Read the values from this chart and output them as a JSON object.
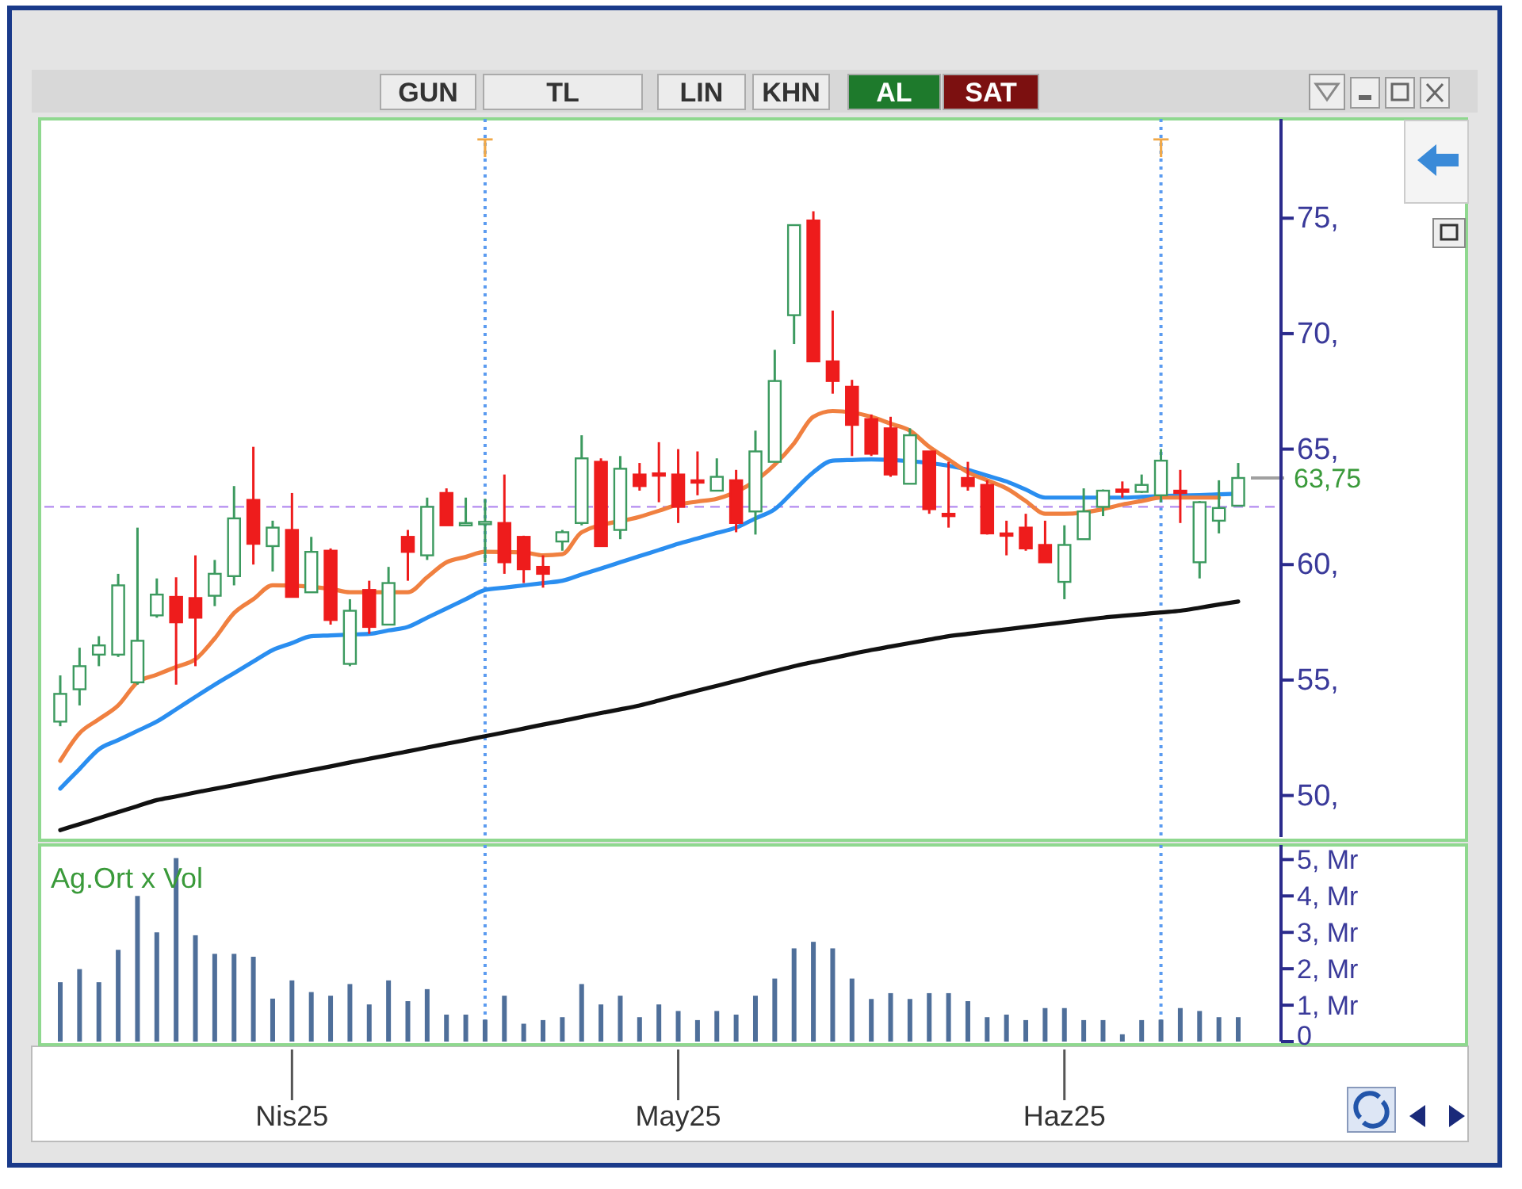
{
  "chart_data": [
    {
      "type": "candlestick",
      "annotations": [
        "GUN",
        "TL",
        "LIN",
        "KHN",
        "AL",
        "SAT",
        "T",
        "T"
      ],
      "categories": [
        null,
        null,
        null,
        null,
        null,
        null,
        null,
        null,
        null,
        null,
        null,
        null,
        null,
        null,
        null,
        null,
        null,
        null,
        null,
        null,
        null,
        null,
        null,
        null,
        null,
        null,
        null,
        null,
        null,
        null,
        null,
        null,
        null,
        null,
        null,
        null,
        null,
        null,
        null,
        null,
        null,
        null,
        null,
        null,
        null,
        null,
        null,
        null,
        null,
        null,
        null,
        null,
        null,
        null,
        null,
        null,
        null,
        null,
        null,
        null,
        null,
        null
      ],
      "ohlc": [
        [
          53.2,
          55.2,
          53.0,
          54.4
        ],
        [
          54.6,
          56.4,
          53.9,
          55.6
        ],
        [
          56.1,
          56.9,
          55.6,
          56.5
        ],
        [
          56.1,
          59.6,
          56.0,
          59.1
        ],
        [
          54.9,
          61.6,
          54.8,
          56.7
        ],
        [
          57.8,
          59.4,
          57.7,
          58.7
        ],
        [
          58.6,
          59.45,
          54.8,
          57.5
        ],
        [
          58.55,
          60.4,
          55.6,
          57.7
        ],
        [
          58.65,
          60.2,
          58.2,
          59.6
        ],
        [
          59.5,
          63.4,
          59.1,
          62.0
        ],
        [
          62.8,
          65.1,
          60.0,
          60.9
        ],
        [
          60.8,
          61.9,
          59.7,
          61.6
        ],
        [
          61.5,
          63.1,
          58.6,
          58.6
        ],
        [
          58.8,
          61.2,
          58.8,
          60.55
        ],
        [
          60.6,
          60.7,
          57.4,
          57.6
        ],
        [
          55.7,
          58.5,
          55.6,
          58.0
        ],
        [
          58.9,
          59.3,
          57.0,
          57.3
        ],
        [
          57.4,
          59.9,
          57.4,
          59.2
        ],
        [
          61.2,
          61.5,
          59.3,
          60.55
        ],
        [
          60.4,
          62.9,
          60.2,
          62.5
        ],
        [
          63.1,
          63.3,
          61.7,
          61.7
        ],
        [
          61.7,
          62.9,
          61.7,
          61.8
        ],
        [
          61.75,
          62.85,
          60.1,
          61.85
        ],
        [
          61.8,
          63.9,
          59.6,
          60.1
        ],
        [
          61.2,
          61.25,
          59.2,
          59.8
        ],
        [
          59.9,
          60.4,
          59.0,
          59.6
        ],
        [
          61.0,
          61.5,
          60.6,
          61.4
        ],
        [
          61.8,
          65.6,
          61.7,
          64.6
        ],
        [
          64.45,
          64.6,
          60.8,
          60.8
        ],
        [
          61.5,
          64.7,
          61.1,
          64.15
        ],
        [
          63.9,
          64.4,
          63.2,
          63.4
        ],
        [
          63.95,
          65.3,
          62.7,
          63.85
        ],
        [
          63.9,
          65.0,
          61.8,
          62.5
        ],
        [
          63.65,
          64.9,
          63.0,
          63.55
        ],
        [
          63.2,
          64.6,
          63.2,
          63.8
        ],
        [
          63.65,
          64.1,
          61.4,
          61.8
        ],
        [
          62.3,
          65.8,
          61.3,
          64.9
        ],
        [
          64.45,
          69.3,
          64.45,
          67.95
        ],
        [
          70.8,
          74.7,
          69.55,
          74.7
        ],
        [
          74.9,
          75.3,
          68.8,
          68.8
        ],
        [
          68.8,
          71.0,
          67.4,
          67.95
        ],
        [
          67.7,
          68.0,
          64.7,
          66.05
        ],
        [
          66.3,
          66.5,
          64.7,
          64.8
        ],
        [
          65.9,
          66.4,
          63.8,
          63.9
        ],
        [
          63.5,
          65.9,
          63.5,
          65.6
        ],
        [
          64.9,
          64.9,
          62.2,
          62.4
        ],
        [
          62.2,
          64.45,
          61.6,
          62.15
        ],
        [
          63.75,
          64.45,
          63.2,
          63.4
        ],
        [
          63.45,
          63.65,
          61.3,
          61.35
        ],
        [
          61.35,
          61.9,
          60.4,
          61.3
        ],
        [
          61.6,
          62.2,
          60.6,
          60.7
        ],
        [
          60.85,
          61.9,
          60.1,
          60.1
        ],
        [
          59.25,
          61.7,
          58.5,
          60.85
        ],
        [
          61.1,
          63.3,
          61.1,
          62.3
        ],
        [
          62.5,
          63.25,
          62.1,
          63.2
        ],
        [
          63.25,
          63.6,
          62.9,
          63.15
        ],
        [
          63.15,
          63.9,
          63.1,
          63.45
        ],
        [
          63.0,
          65.0,
          62.7,
          64.5
        ],
        [
          63.2,
          64.1,
          61.8,
          63.1
        ],
        [
          60.1,
          62.75,
          59.4,
          62.7
        ],
        [
          61.9,
          63.65,
          61.35,
          62.45
        ],
        [
          62.55,
          64.4,
          62.55,
          63.75
        ]
      ],
      "series": [
        {
          "type": "line",
          "color": "#111111",
          "values": [
            48.5,
            48.76,
            49.02,
            49.28,
            49.54,
            49.8,
            49.96,
            50.13,
            50.29,
            50.45,
            50.61,
            50.78,
            50.94,
            51.1,
            51.26,
            51.43,
            51.59,
            51.75,
            51.91,
            52.08,
            52.24,
            52.4,
            52.57,
            52.73,
            52.9,
            53.07,
            53.23,
            53.4,
            53.57,
            53.73,
            53.9,
            54.11,
            54.33,
            54.54,
            54.75,
            54.96,
            55.18,
            55.39,
            55.6,
            55.78,
            55.95,
            56.13,
            56.3,
            56.45,
            56.6,
            56.75,
            56.9,
            57.0,
            57.1,
            57.2,
            57.3,
            57.4,
            57.5,
            57.6,
            57.7,
            57.78,
            57.85,
            57.93,
            58.0,
            58.13,
            58.27,
            58.4
          ]
        },
        {
          "type": "line",
          "color": "#2a8ef0",
          "values": [
            50.3,
            51.15,
            52.0,
            52.4,
            52.8,
            53.2,
            53.73,
            54.27,
            54.8,
            55.3,
            55.8,
            56.3,
            56.6,
            56.9,
            56.93,
            56.97,
            57.0,
            57.15,
            57.3,
            57.7,
            58.1,
            58.5,
            58.9,
            59.0,
            59.1,
            59.2,
            59.3,
            59.57,
            59.83,
            60.1,
            60.37,
            60.63,
            60.9,
            61.13,
            61.37,
            61.6,
            62.0,
            62.4,
            63.2,
            64.0,
            64.5,
            64.53,
            64.55,
            null,
            64.48,
            null,
            64.28,
            64.1,
            63.85,
            63.6,
            63.25,
            62.9,
            62.9,
            62.9,
            62.9,
            62.9,
            62.93,
            62.96,
            62.99,
            63.01,
            63.04,
            63.07
          ]
        },
        {
          "type": "line",
          "color": "#f08040",
          "values": [
            51.5,
            52.7,
            53.3,
            53.9,
            54.9,
            55.23,
            55.57,
            55.9,
            56.8,
            57.9,
            58.5,
            59.1,
            null,
            null,
            58.95,
            58.8,
            58.8,
            null,
            58.8,
            59.45,
            60.1,
            60.33,
            60.55,
            null,
            60.53,
            60.4,
            60.45,
            61.4,
            null,
            null,
            62.07,
            62.33,
            62.6,
            62.73,
            62.85,
            null,
            null,
            64.33,
            65.25,
            66.4,
            66.65,
            null,
            66.4,
            66.1,
            65.8,
            65.1,
            64.55,
            64.0,
            63.65,
            63.3,
            62.75,
            62.2,
            62.2,
            null,
            62.4,
            62.6,
            62.75,
            62.9,
            62.9,
            62.9,
            62.9,
            null
          ]
        }
      ],
      "ylim": [
        48.2,
        79.3
      ],
      "yticks": [
        {
          "value": 50,
          "label": "50,"
        },
        {
          "value": 55,
          "label": "55,"
        },
        {
          "value": 60,
          "label": "60,"
        },
        {
          "value": 65,
          "label": "65,"
        },
        {
          "value": 70,
          "label": "70,"
        },
        {
          "value": 75,
          "label": "75,"
        }
      ],
      "tick_labels": "y",
      "ref_lines": [
        {
          "axis": "y",
          "value": 62.5,
          "color": "#b48cf0",
          "line_style": "dashed"
        },
        {
          "axis": "y",
          "value": 63.75,
          "label": "63,75",
          "color": "#a0a0a0"
        }
      ]
    },
    {
      "type": "bar",
      "title": "Ag.Ort x Vol",
      "color": "#4f6f9a",
      "categories": [
        null,
        null,
        null,
        null,
        null,
        null,
        null,
        null,
        null,
        null,
        null,
        null,
        "Nis25",
        null,
        null,
        null,
        null,
        null,
        null,
        null,
        null,
        null,
        null,
        null,
        null,
        null,
        null,
        null,
        null,
        null,
        null,
        null,
        "May25",
        null,
        null,
        null,
        null,
        null,
        null,
        null,
        null,
        null,
        null,
        null,
        null,
        null,
        null,
        null,
        null,
        null,
        null,
        null,
        "Haz25",
        null,
        null,
        null,
        null,
        null,
        null,
        null,
        null,
        null
      ],
      "values": [
        1.63,
        1.99,
        1.63,
        2.52,
        4.0,
        3.0,
        5.04,
        2.92,
        2.41,
        2.41,
        2.33,
        1.18,
        1.68,
        1.36,
        1.26,
        1.58,
        1.02,
        1.68,
        1.11,
        1.44,
        0.74,
        0.74,
        0.6,
        1.26,
        0.49,
        0.59,
        0.67,
        1.58,
        1.02,
        1.26,
        0.67,
        1.02,
        0.84,
        0.59,
        0.84,
        0.74,
        1.26,
        1.73,
        2.56,
        2.74,
        2.56,
        1.73,
        1.17,
        1.33,
        1.17,
        1.33,
        1.33,
        1.11,
        0.67,
        0.74,
        0.59,
        0.92,
        0.92,
        0.59,
        0.59,
        0.2,
        0.59,
        0.6,
        0.92,
        0.84,
        0.67,
        0.67
      ],
      "ylim": [
        0,
        5.4
      ],
      "tick_labels": "xy",
      "yticks": [
        {
          "value": 0,
          "label": "0"
        },
        {
          "value": 1,
          "label": "1, Mr"
        },
        {
          "value": 2,
          "label": "2, Mr"
        },
        {
          "value": 3,
          "label": "3, Mr"
        },
        {
          "value": 4,
          "label": "4, Mr"
        },
        {
          "value": 5,
          "label": "5, Mr"
        }
      ]
    }
  ]
}
